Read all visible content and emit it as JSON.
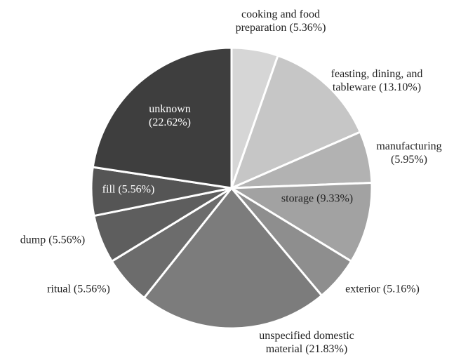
{
  "chart_data": {
    "type": "pie",
    "categories": [
      "cooking and food preparation",
      "feasting, dining, and tableware",
      "manufacturing",
      "storage",
      "exterior",
      "unspecified domestic material",
      "ritual",
      "dump",
      "fill",
      "unknown"
    ],
    "values": [
      5.36,
      13.1,
      5.95,
      9.33,
      5.16,
      21.83,
      5.56,
      5.56,
      5.56,
      22.62
    ],
    "value_labels": [
      "(5.36%)",
      "(13.10%)",
      "(5.95%)",
      "(9.33%)",
      "(5.16%)",
      "(21.83%)",
      "(5.56%)",
      "(5.56%)",
      "(5.56%)",
      "(22.62%)"
    ],
    "colors": [
      "#d6d6d6",
      "#c6c6c6",
      "#b2b2b2",
      "#a2a2a2",
      "#8e8e8e",
      "#7c7c7c",
      "#6c6c6c",
      "#5e5e5e",
      "#555555",
      "#3e3e3e"
    ]
  }
}
